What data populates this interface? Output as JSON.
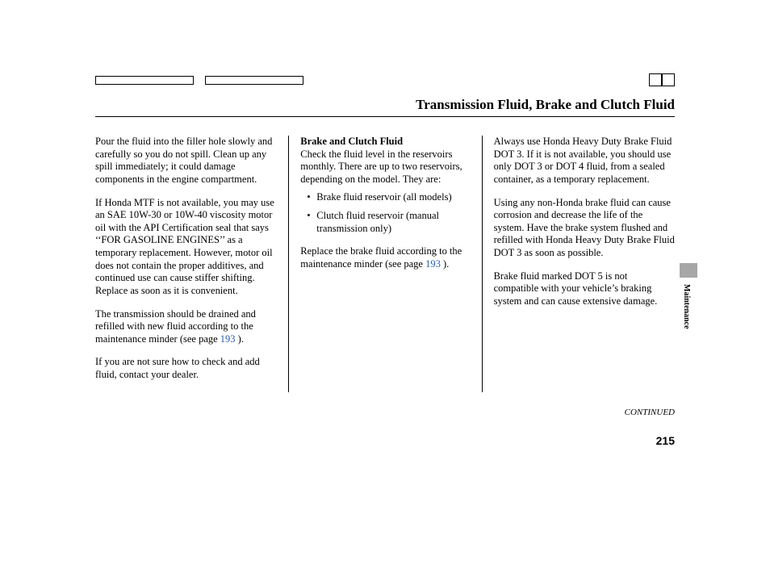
{
  "title": "Transmission Fluid, Brake and Clutch Fluid",
  "col1": {
    "p1": "Pour the fluid into the filler hole slowly and carefully so you do not spill. Clean up any spill immediately; it could damage components in the engine compartment.",
    "p2": "If Honda MTF is not available, you may use an SAE 10W-30 or 10W-40 viscosity motor oil with the API Certification seal that says ‘‘FOR GASOLINE ENGINES’’ as a temporary replacement. However, motor oil does not contain the proper additives, and continued use can cause stiffer shifting. Replace as soon as it is convenient.",
    "p3a": "The transmission should be drained and refilled with new fluid according to the maintenance minder (see page ",
    "p3_link": "193",
    "p3b": " ).",
    "p4": "If you are not sure how to check and add fluid, contact your dealer."
  },
  "col2": {
    "heading": "Brake and Clutch Fluid",
    "p1": "Check the fluid level in the reservoirs monthly. There are up to two reservoirs, depending on the model. They are:",
    "bullets": [
      "Brake fluid reservoir (all models)",
      "Clutch fluid reservoir (manual transmission only)"
    ],
    "p2a": "Replace the brake fluid according to the maintenance minder (see page ",
    "p2_link": "193",
    "p2b": " )."
  },
  "col3": {
    "p1": "Always use Honda Heavy Duty Brake Fluid DOT 3. If it is not available, you should use only DOT 3 or DOT 4 fluid, from a sealed container, as a temporary replacement.",
    "p2": "Using any non-Honda brake fluid can cause corrosion and decrease the life of the system. Have the brake system flushed and refilled with Honda Heavy Duty Brake Fluid DOT 3 as soon as possible.",
    "p3": "Brake fluid marked DOT 5 is not compatible with your vehicle’s braking system and can cause extensive damage."
  },
  "continued": "CONTINUED",
  "page_number": "215",
  "side_label": "Maintenance"
}
